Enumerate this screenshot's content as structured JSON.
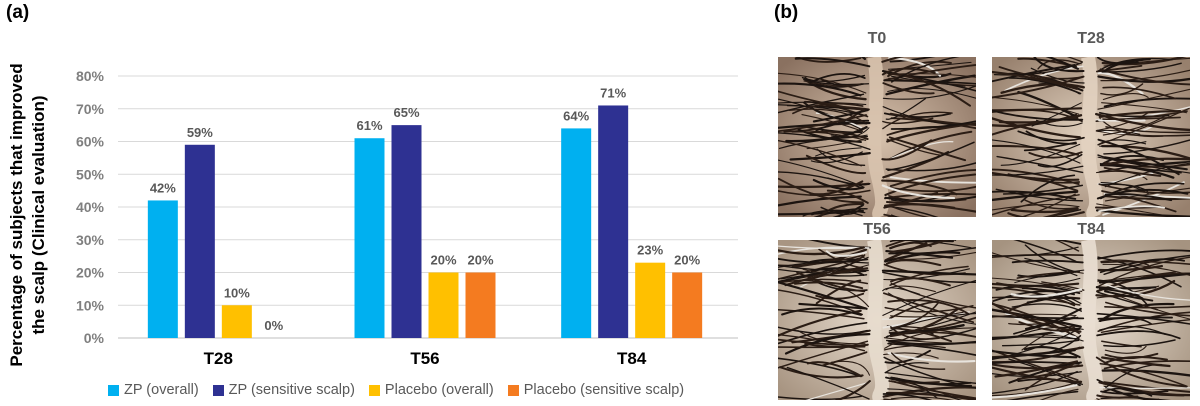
{
  "panel_a_label": "(a)",
  "panel_b_label": "(b)",
  "chart_data": {
    "type": "bar",
    "title": "",
    "xlabel": "",
    "ylabel": "Percentage of subjects that improved the scalp (Clinical evaluation)",
    "ylabel_lines": [
      "Percentage of subjects that improved",
      "the scalp (Clinical evaluation)"
    ],
    "categories": [
      "T28",
      "T56",
      "T84"
    ],
    "ylim": [
      0,
      80
    ],
    "yticks": [
      "0%",
      "10%",
      "20%",
      "30%",
      "40%",
      "50%",
      "60%",
      "70%",
      "80%"
    ],
    "grid": true,
    "legend_position": "bottom",
    "series": [
      {
        "name": "ZP (overall)",
        "color": "#00b0f0",
        "values": [
          42,
          61,
          64
        ],
        "labels": [
          "42%",
          "61%",
          "64%"
        ]
      },
      {
        "name": "ZP (sensitive scalp)",
        "color": "#2e3192",
        "values": [
          59,
          65,
          71
        ],
        "labels": [
          "59%",
          "65%",
          "71%"
        ]
      },
      {
        "name": "Placebo (overall)",
        "color": "#ffc000",
        "values": [
          10,
          20,
          23
        ],
        "labels": [
          "10%",
          "20%",
          "23%"
        ]
      },
      {
        "name": "Placebo (sensitive scalp)",
        "color": "#f47b20",
        "values": [
          0,
          20,
          20
        ],
        "labels": [
          "0%",
          "20%",
          "20%"
        ]
      }
    ]
  },
  "photos": {
    "items": [
      {
        "label": "T0",
        "icon": "scalp-photo"
      },
      {
        "label": "T28",
        "icon": "scalp-photo"
      },
      {
        "label": "T56",
        "icon": "scalp-photo"
      },
      {
        "label": "T84",
        "icon": "scalp-photo"
      }
    ]
  }
}
